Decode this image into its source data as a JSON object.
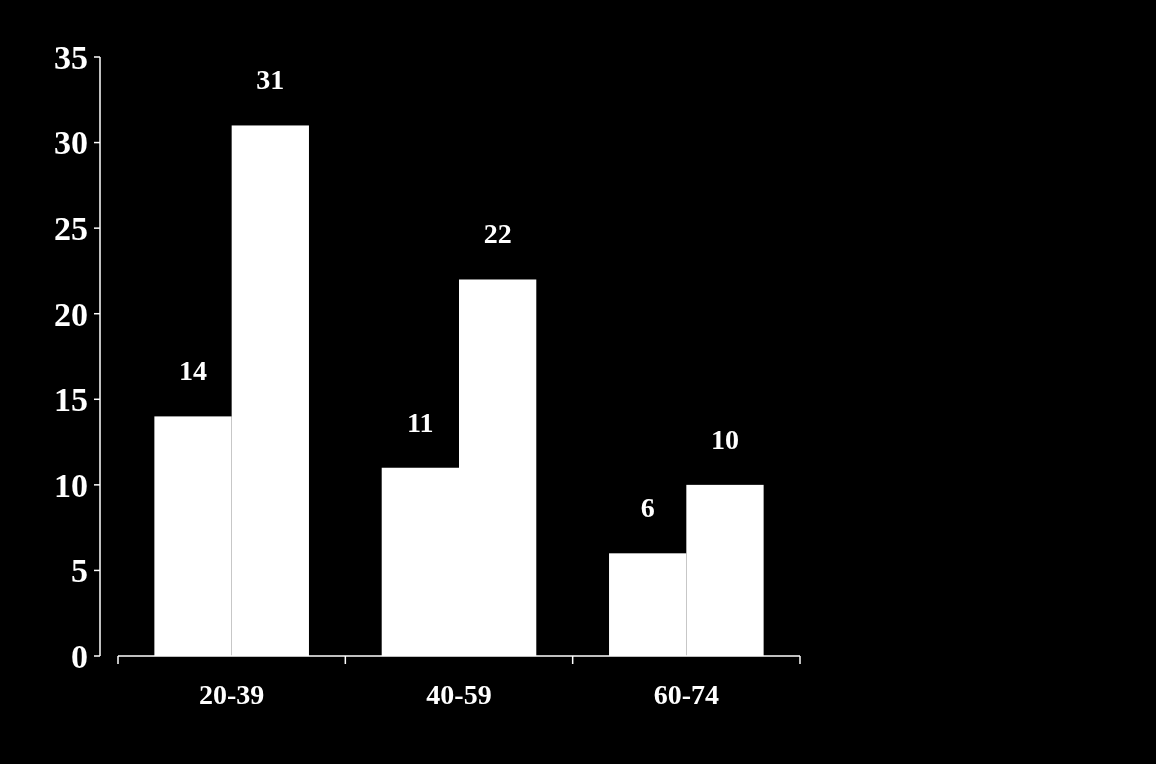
{
  "chart_data": {
    "type": "bar",
    "categories": [
      "20-39",
      "40-59",
      "60-74"
    ],
    "series": [
      {
        "color": "#ffffff",
        "values": [
          14,
          11,
          6
        ]
      },
      {
        "color": "#ffffff",
        "values": [
          31,
          22,
          10
        ]
      }
    ],
    "ylim": [
      0,
      35
    ],
    "yticks": [
      0,
      5,
      10,
      15,
      20,
      25,
      30,
      35
    ],
    "data_labels": true,
    "grid": false
  }
}
